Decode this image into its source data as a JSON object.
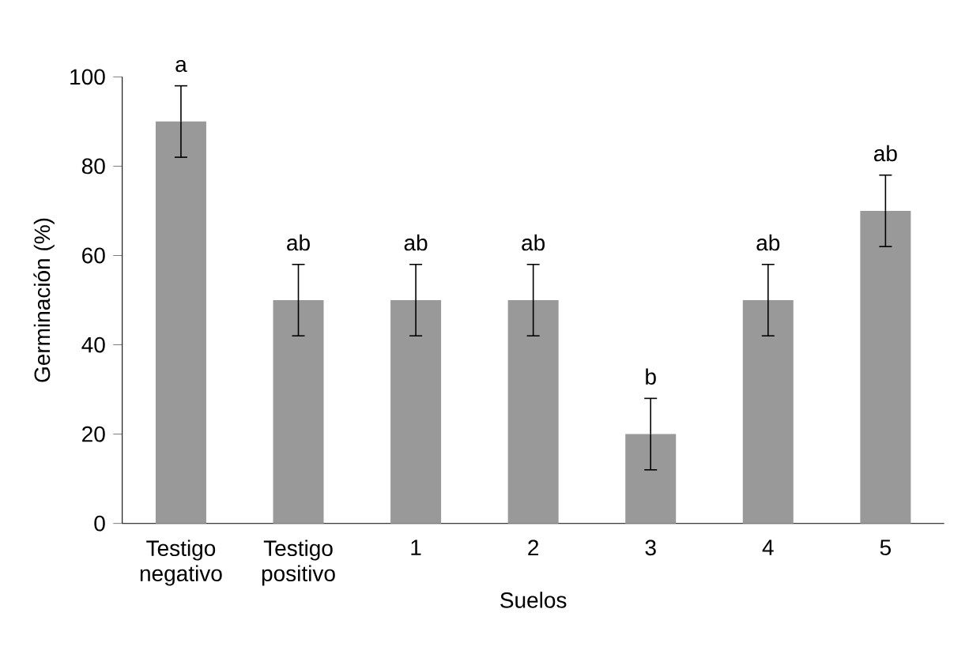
{
  "chart_data": {
    "type": "bar",
    "xlabel": "Suelos",
    "ylabel": "Germinación (%)",
    "categories": [
      "Testigo negativo",
      "Testigo positivo",
      "1",
      "2",
      "3",
      "4",
      "5"
    ],
    "values": [
      90,
      50,
      50,
      50,
      20,
      50,
      70
    ],
    "errors": [
      8,
      8,
      8,
      8,
      8,
      8,
      8
    ],
    "color": "#999999",
    "ylim": [
      0,
      100
    ],
    "yticks": [
      0,
      20,
      40,
      60,
      80,
      100
    ],
    "grid": false,
    "annotations": [
      {
        "text": "a",
        "x": "Testigo negativo",
        "y": 98
      },
      {
        "text": "ab",
        "x": "Testigo positivo",
        "y": 58
      },
      {
        "text": "ab",
        "x": "1",
        "y": 58
      },
      {
        "text": "ab",
        "x": "2",
        "y": 58
      },
      {
        "text": "b",
        "x": "3",
        "y": 28
      },
      {
        "text": "ab",
        "x": "4",
        "y": 58
      },
      {
        "text": "ab",
        "x": "5",
        "y": 78
      }
    ]
  }
}
